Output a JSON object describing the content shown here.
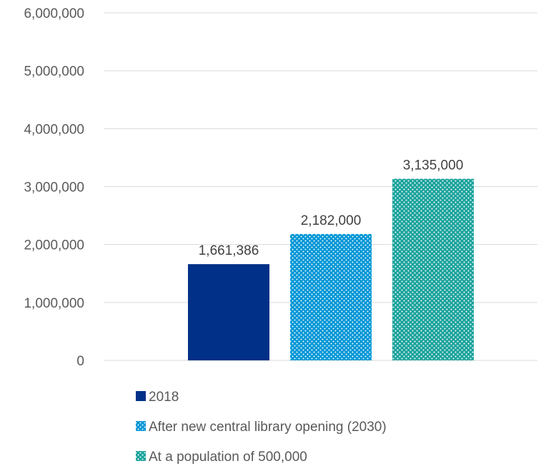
{
  "chart_data": {
    "type": "bar",
    "title": "",
    "xlabel": "",
    "ylabel": "",
    "ylim": [
      0,
      6000000
    ],
    "yticks": [
      0,
      1000000,
      2000000,
      3000000,
      4000000,
      5000000,
      6000000
    ],
    "ytick_labels": [
      "0",
      "1,000,000",
      "2,000,000",
      "3,000,000",
      "4,000,000",
      "5,000,000",
      "6,000,000"
    ],
    "grid": true,
    "legend_position": "bottom",
    "series": [
      {
        "name": "2018",
        "value": 1661386,
        "value_label": "1,661,386",
        "color": "#003087",
        "pattern": "solid"
      },
      {
        "name": "After new central library opening (2030)",
        "value": 2182000,
        "value_label": "2,182,000",
        "color": "#0096D6",
        "pattern": "dotted"
      },
      {
        "name": "At a population of 500,000",
        "value": 3135000,
        "value_label": "3,135,000",
        "color": "#1BA39C",
        "pattern": "dotted"
      }
    ]
  }
}
